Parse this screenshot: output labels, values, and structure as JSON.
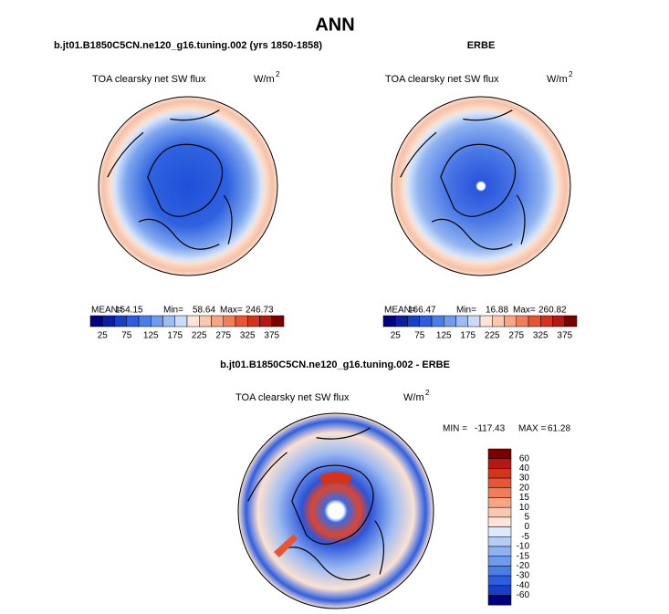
{
  "header": {
    "title": "ANN"
  },
  "panels": [
    {
      "title": "b.jt01.B1850C5CN.ne120_g16.tuning.002 (yrs 1850-1858)",
      "variable": "TOA clearsky net SW flux",
      "units": "W/m",
      "units_exp": "2",
      "mean_label": "MEAN=",
      "mean": 154.15,
      "min_label": "Min=",
      "min": 58.64,
      "max_label": "Max=",
      "max": 246.73,
      "colorbar": [
        25,
        75,
        125,
        175,
        225,
        275,
        325,
        375
      ]
    },
    {
      "title": "ERBE",
      "variable": "TOA clearsky net SW flux",
      "units": "W/m",
      "units_exp": "2",
      "mean_label": "MEAN=",
      "mean": 166.47,
      "min_label": "Min=",
      "min": 16.88,
      "max_label": "Max=",
      "max": 260.82,
      "colorbar": [
        25,
        75,
        125,
        175,
        225,
        275,
        325,
        375
      ]
    }
  ],
  "difference": {
    "title": "b.jt01.B1850C5CN.ne120_g16.tuning.002 - ERBE",
    "variable": "TOA clearsky net SW flux",
    "units": "W/m",
    "units_exp": "2",
    "min_label": "MIN =",
    "min": -117.43,
    "max_label": "MAX =",
    "max": 61.28,
    "colorbar": [
      60,
      40,
      30,
      20,
      15,
      10,
      5,
      0,
      -5,
      -10,
      -15,
      -20,
      -30,
      -40,
      -60
    ]
  }
}
